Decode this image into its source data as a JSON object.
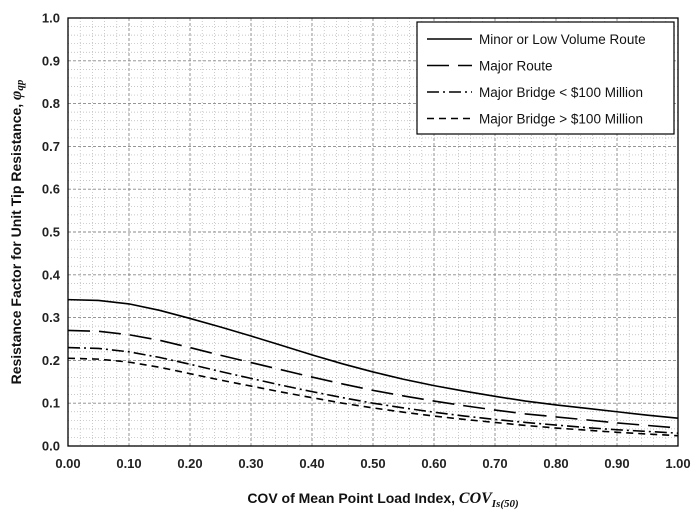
{
  "chart_data": {
    "type": "line",
    "xlabel": {
      "text": "COV of Mean Point Load Index, ",
      "symbol": "COV",
      "subscript": "Is(50)"
    },
    "ylabel": {
      "text": "Resistance Factor for Unit Tip Resistance, ",
      "symbol": "φ",
      "subscript": "qp"
    },
    "xlim": [
      0,
      1
    ],
    "ylim": [
      0,
      1
    ],
    "x_ticks": [
      "0.00",
      "0.10",
      "0.20",
      "0.30",
      "0.40",
      "0.50",
      "0.60",
      "0.70",
      "0.80",
      "0.90",
      "1.00"
    ],
    "y_ticks": [
      "0.0",
      "0.1",
      "0.2",
      "0.3",
      "0.4",
      "0.5",
      "0.6",
      "0.7",
      "0.8",
      "0.9",
      "1.0"
    ],
    "grid": true,
    "legend_position": "top-right",
    "series": [
      {
        "name": "Minor or Low Volume Route",
        "dash": "solid",
        "x": [
          0.0,
          0.05,
          0.1,
          0.15,
          0.2,
          0.25,
          0.3,
          0.35,
          0.4,
          0.45,
          0.5,
          0.55,
          0.6,
          0.65,
          0.7,
          0.75,
          0.8,
          0.85,
          0.9,
          0.95,
          1.0
        ],
        "y": [
          0.342,
          0.34,
          0.332,
          0.317,
          0.298,
          0.278,
          0.257,
          0.235,
          0.213,
          0.192,
          0.173,
          0.156,
          0.141,
          0.128,
          0.116,
          0.105,
          0.096,
          0.088,
          0.08,
          0.072,
          0.065
        ]
      },
      {
        "name": "Major Route",
        "dash": "long-dash",
        "x": [
          0.0,
          0.05,
          0.1,
          0.15,
          0.2,
          0.25,
          0.3,
          0.35,
          0.4,
          0.45,
          0.5,
          0.55,
          0.6,
          0.65,
          0.7,
          0.75,
          0.8,
          0.85,
          0.9,
          0.95,
          1.0
        ],
        "y": [
          0.27,
          0.268,
          0.26,
          0.247,
          0.23,
          0.212,
          0.195,
          0.178,
          0.161,
          0.145,
          0.13,
          0.117,
          0.105,
          0.094,
          0.084,
          0.075,
          0.068,
          0.061,
          0.054,
          0.048,
          0.042
        ]
      },
      {
        "name": "Major Bridge < $100 Million",
        "dash": "dash-dot",
        "x": [
          0.0,
          0.05,
          0.1,
          0.15,
          0.2,
          0.25,
          0.3,
          0.35,
          0.4,
          0.45,
          0.5,
          0.55,
          0.6,
          0.65,
          0.7,
          0.75,
          0.8,
          0.85,
          0.9,
          0.95,
          1.0
        ],
        "y": [
          0.23,
          0.228,
          0.22,
          0.207,
          0.191,
          0.174,
          0.158,
          0.142,
          0.127,
          0.113,
          0.1,
          0.089,
          0.079,
          0.07,
          0.062,
          0.055,
          0.049,
          0.043,
          0.038,
          0.034,
          0.03
        ]
      },
      {
        "name": "Major Bridge > $100 Million",
        "dash": "short-dash",
        "x": [
          0.0,
          0.05,
          0.1,
          0.15,
          0.2,
          0.25,
          0.3,
          0.35,
          0.4,
          0.45,
          0.5,
          0.55,
          0.6,
          0.65,
          0.7,
          0.75,
          0.8,
          0.85,
          0.9,
          0.95,
          1.0
        ],
        "y": [
          0.205,
          0.203,
          0.196,
          0.184,
          0.169,
          0.154,
          0.14,
          0.126,
          0.113,
          0.1,
          0.089,
          0.079,
          0.07,
          0.062,
          0.055,
          0.048,
          0.042,
          0.037,
          0.032,
          0.028,
          0.024
        ]
      }
    ]
  }
}
